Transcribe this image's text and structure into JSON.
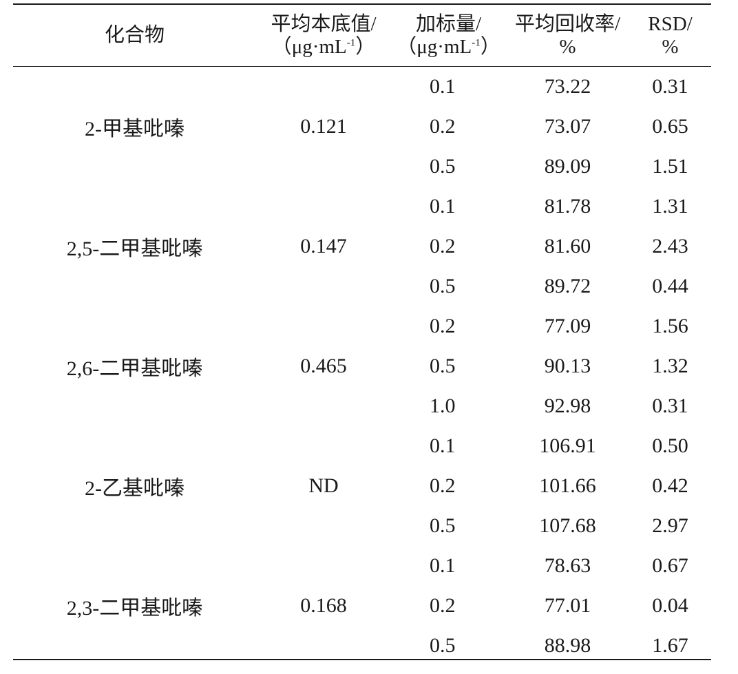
{
  "table": {
    "headers": {
      "compound": "化合物",
      "background_line1": "平均本底值/",
      "background_line2_pre": "（μg·mL",
      "background_line2_sup": "-1",
      "background_line2_post": "）",
      "spike_line1": "加标量/",
      "spike_line2_pre": "（μg·mL",
      "spike_line2_sup": "-1",
      "spike_line2_post": "）",
      "recovery_line1": "平均回收率/",
      "recovery_line2": "%",
      "rsd_line1": "RSD/",
      "rsd_line2": "%"
    },
    "groups": [
      {
        "compound": "2-甲基吡嗪",
        "background": "0.121",
        "rows": [
          {
            "spike": "0.1",
            "recovery": "73.22",
            "rsd": "0.31"
          },
          {
            "spike": "0.2",
            "recovery": "73.07",
            "rsd": "0.65"
          },
          {
            "spike": "0.5",
            "recovery": "89.09",
            "rsd": "1.51"
          }
        ]
      },
      {
        "compound": "2,5-二甲基吡嗪",
        "background": "0.147",
        "rows": [
          {
            "spike": "0.1",
            "recovery": "81.78",
            "rsd": "1.31"
          },
          {
            "spike": "0.2",
            "recovery": "81.60",
            "rsd": "2.43"
          },
          {
            "spike": "0.5",
            "recovery": "89.72",
            "rsd": "0.44"
          }
        ]
      },
      {
        "compound": "2,6-二甲基吡嗪",
        "background": "0.465",
        "rows": [
          {
            "spike": "0.2",
            "recovery": "77.09",
            "rsd": "1.56"
          },
          {
            "spike": "0.5",
            "recovery": "90.13",
            "rsd": "1.32"
          },
          {
            "spike": "1.0",
            "recovery": "92.98",
            "rsd": "0.31"
          }
        ]
      },
      {
        "compound": "2-乙基吡嗪",
        "background": "ND",
        "rows": [
          {
            "spike": "0.1",
            "recovery": "106.91",
            "rsd": "0.50"
          },
          {
            "spike": "0.2",
            "recovery": "101.66",
            "rsd": "0.42"
          },
          {
            "spike": "0.5",
            "recovery": "107.68",
            "rsd": "2.97"
          }
        ]
      },
      {
        "compound": "2,3-二甲基吡嗪",
        "background": "0.168",
        "rows": [
          {
            "spike": "0.1",
            "recovery": "78.63",
            "rsd": "0.67"
          },
          {
            "spike": "0.2",
            "recovery": "77.01",
            "rsd": "0.04"
          },
          {
            "spike": "0.5",
            "recovery": "88.98",
            "rsd": "1.67"
          }
        ]
      }
    ]
  }
}
